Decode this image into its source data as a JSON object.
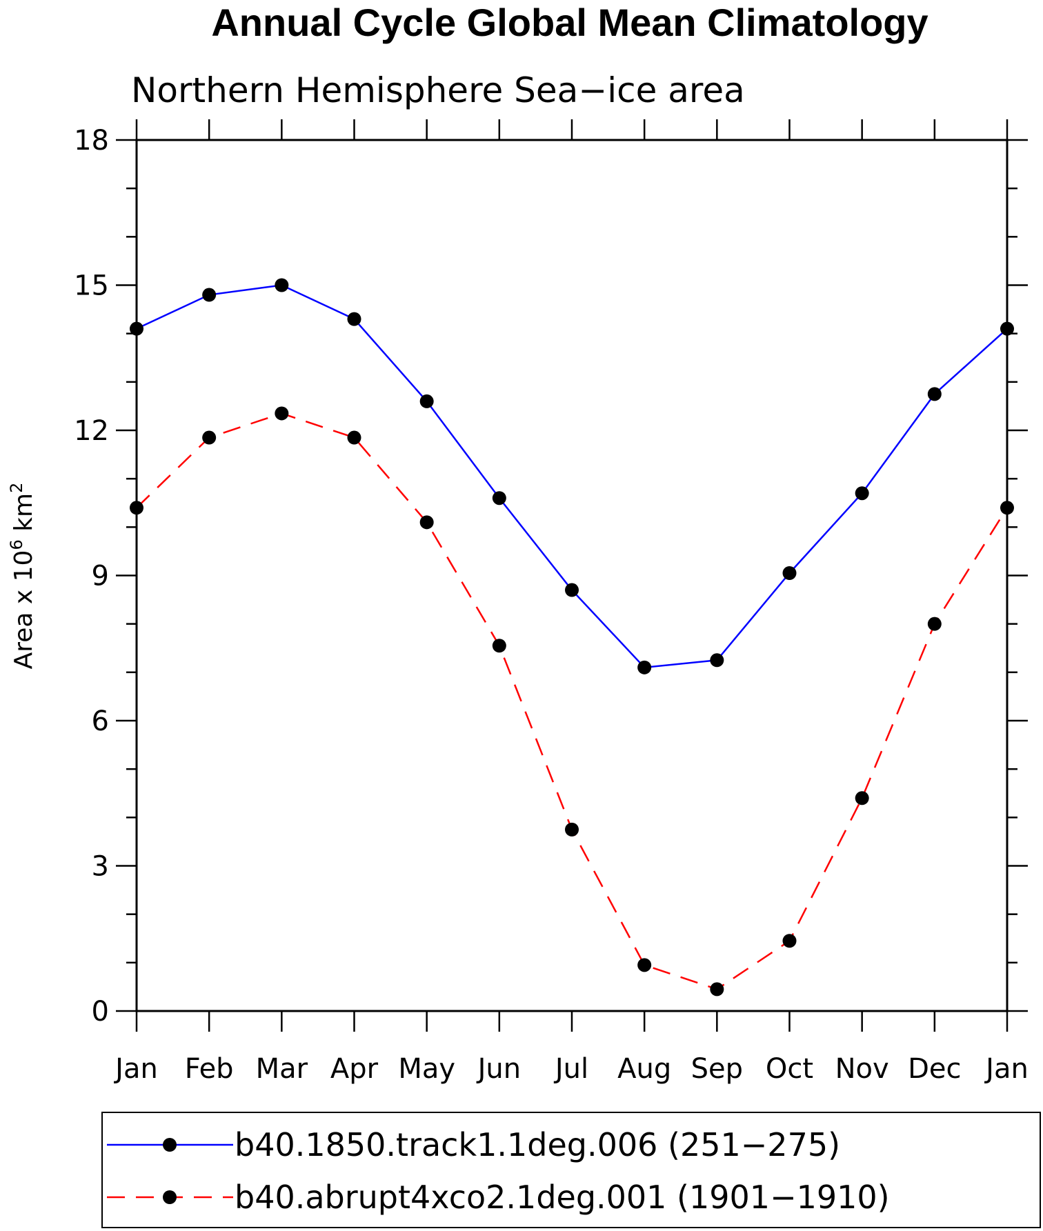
{
  "chart_data": {
    "type": "line",
    "title": "Annual Cycle Global Mean Climatology",
    "subtitle": "Northern Hemisphere Sea−ice area",
    "ylabel_prefix": "Area x 10",
    "ylabel_exp1": "6",
    "ylabel_mid": " km",
    "ylabel_exp2": "2",
    "xlabel": "",
    "categories": [
      "Jan",
      "Feb",
      "Mar",
      "Apr",
      "May",
      "Jun",
      "Jul",
      "Aug",
      "Sep",
      "Oct",
      "Nov",
      "Dec",
      "Jan"
    ],
    "yticks": [
      0,
      3,
      6,
      9,
      12,
      15,
      18
    ],
    "ylim": [
      0,
      18
    ],
    "grid": false,
    "legend_position": "bottom",
    "series": [
      {
        "name": "b40.1850.track1.1deg.006 (251−275)",
        "color": "#0000ff",
        "dash": "solid",
        "values": [
          14.1,
          14.8,
          15.0,
          14.3,
          12.6,
          10.6,
          8.7,
          7.1,
          7.25,
          9.05,
          10.7,
          12.75,
          14.1
        ]
      },
      {
        "name": "b40.abrupt4xco2.1deg.001 (1901−1910)",
        "color": "#ff0000",
        "dash": "dashed",
        "values": [
          10.4,
          11.85,
          12.35,
          11.85,
          10.1,
          7.55,
          3.75,
          0.95,
          0.45,
          1.45,
          4.4,
          8.0,
          10.4
        ]
      }
    ]
  }
}
